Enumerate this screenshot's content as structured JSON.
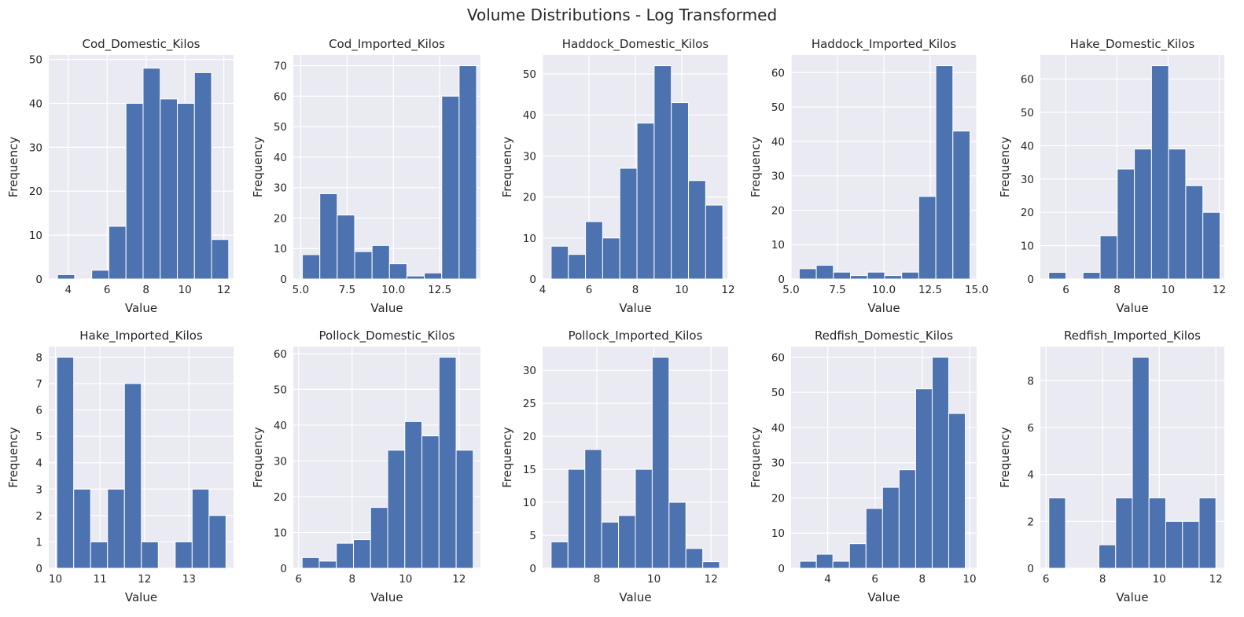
{
  "figure": {
    "suptitle": "Volume Distributions - Log Transformed"
  },
  "chart_data": [
    {
      "type": "bar",
      "title": "Cod_Domestic_Kilos",
      "xlabel": "Value",
      "ylabel": "Frequency",
      "xlim": [
        3.0,
        12.5
      ],
      "ylim": [
        0,
        51
      ],
      "xticks": [
        4,
        6,
        8,
        10,
        12
      ],
      "yticks": [
        0,
        10,
        20,
        30,
        40,
        50
      ],
      "bin_edges": [
        3.45,
        4.33,
        5.21,
        6.09,
        6.97,
        7.85,
        8.73,
        9.61,
        10.49,
        11.37,
        12.25
      ],
      "counts": [
        1,
        0,
        2,
        12,
        40,
        48,
        41,
        40,
        47,
        9
      ]
    },
    {
      "type": "bar",
      "title": "Cod_Imported_Kilos",
      "xlabel": "Value",
      "ylabel": "Frequency",
      "xlim": [
        4.6,
        14.7
      ],
      "ylim": [
        0,
        73.5
      ],
      "xticks": [
        5.0,
        7.5,
        10.0,
        12.5
      ],
      "xtick_labels": [
        "5.0",
        "7.5",
        "10.0",
        "12.5"
      ],
      "yticks": [
        0,
        10,
        20,
        30,
        40,
        50,
        60,
        70
      ],
      "bin_edges": [
        5.09,
        6.03,
        6.97,
        7.91,
        8.85,
        9.79,
        10.73,
        11.67,
        12.61,
        13.55,
        14.49
      ],
      "counts": [
        8,
        28,
        21,
        9,
        11,
        5,
        1,
        2,
        60,
        70
      ]
    },
    {
      "type": "bar",
      "title": "Haddock_Domestic_Kilos",
      "xlabel": "Value",
      "ylabel": "Frequency",
      "xlim": [
        4.0,
        12.0
      ],
      "ylim": [
        0,
        54.6
      ],
      "xticks": [
        4,
        6,
        8,
        10,
        12
      ],
      "yticks": [
        0,
        10,
        20,
        30,
        40,
        50
      ],
      "bin_edges": [
        4.37,
        5.11,
        5.85,
        6.59,
        7.33,
        8.07,
        8.81,
        9.55,
        10.29,
        11.03,
        11.77
      ],
      "counts": [
        8,
        6,
        14,
        10,
        27,
        38,
        52,
        43,
        24,
        18
      ]
    },
    {
      "type": "bar",
      "title": "Haddock_Imported_Kilos",
      "xlabel": "Value",
      "ylabel": "Frequency",
      "xlim": [
        5.0,
        15.0
      ],
      "ylim": [
        0,
        65.1
      ],
      "xticks": [
        5.0,
        7.5,
        10.0,
        12.5,
        15.0
      ],
      "xtick_labels": [
        "5.0",
        "7.5",
        "10.0",
        "12.5",
        "15.0"
      ],
      "yticks": [
        0,
        10,
        20,
        30,
        40,
        50,
        60
      ],
      "bin_edges": [
        5.44,
        6.36,
        7.28,
        8.2,
        9.12,
        10.04,
        10.96,
        11.88,
        12.8,
        13.72,
        14.64
      ],
      "counts": [
        3,
        4,
        2,
        1,
        2,
        1,
        2,
        24,
        62,
        43
      ]
    },
    {
      "type": "bar",
      "title": "Hake_Domestic_Kilos",
      "xlabel": "Value",
      "ylabel": "Frequency",
      "xlim": [
        5.0,
        12.2
      ],
      "ylim": [
        0,
        67.2
      ],
      "xticks": [
        6,
        8,
        10,
        12
      ],
      "yticks": [
        0,
        10,
        20,
        30,
        40,
        50,
        60
      ],
      "bin_edges": [
        5.33,
        6.0,
        6.67,
        7.34,
        8.01,
        8.68,
        9.35,
        10.02,
        10.69,
        11.36,
        12.03
      ],
      "counts": [
        2,
        0,
        2,
        13,
        33,
        39,
        64,
        39,
        28,
        20
      ]
    },
    {
      "type": "bar",
      "title": "Hake_Imported_Kilos",
      "xlabel": "Value",
      "ylabel": "Frequency",
      "xlim": [
        9.85,
        14.0
      ],
      "ylim": [
        0,
        8.4
      ],
      "xticks": [
        10,
        11,
        12,
        13
      ],
      "yticks": [
        0,
        1,
        2,
        3,
        4,
        5,
        6,
        7,
        8
      ],
      "bin_edges": [
        10.03,
        10.41,
        10.79,
        11.17,
        11.55,
        11.93,
        12.31,
        12.69,
        13.07,
        13.45,
        13.83
      ],
      "counts": [
        8,
        3,
        1,
        3,
        7,
        1,
        0,
        1,
        3,
        2
      ]
    },
    {
      "type": "bar",
      "title": "Pollock_Domestic_Kilos",
      "xlabel": "Value",
      "ylabel": "Frequency",
      "xlim": [
        5.8,
        12.8
      ],
      "ylim": [
        0,
        61.95
      ],
      "xticks": [
        6,
        8,
        10,
        12
      ],
      "yticks": [
        0,
        10,
        20,
        30,
        40,
        50,
        60
      ],
      "bin_edges": [
        6.13,
        6.77,
        7.41,
        8.05,
        8.69,
        9.33,
        9.97,
        10.61,
        11.25,
        11.89,
        12.53
      ],
      "counts": [
        3,
        2,
        7,
        8,
        17,
        33,
        41,
        37,
        59,
        33
      ]
    },
    {
      "type": "bar",
      "title": "Pollock_Imported_Kilos",
      "xlabel": "Value",
      "ylabel": "Frequency",
      "xlim": [
        6.1,
        12.6
      ],
      "ylim": [
        0,
        33.6
      ],
      "xticks": [
        8,
        10,
        12
      ],
      "yticks": [
        0,
        5,
        10,
        15,
        20,
        25,
        30
      ],
      "bin_edges": [
        6.4,
        6.99,
        7.58,
        8.17,
        8.76,
        9.35,
        9.94,
        10.53,
        11.12,
        11.71,
        12.3
      ],
      "counts": [
        4,
        15,
        18,
        7,
        8,
        15,
        32,
        10,
        3,
        1
      ]
    },
    {
      "type": "bar",
      "title": "Redfish_Domestic_Kilos",
      "xlabel": "Value",
      "ylabel": "Frequency",
      "xlim": [
        2.45,
        10.3
      ],
      "ylim": [
        0,
        63.0
      ],
      "xticks": [
        4,
        6,
        8,
        10
      ],
      "yticks": [
        0,
        10,
        20,
        30,
        40,
        50,
        60
      ],
      "bin_edges": [
        2.82,
        3.52,
        4.22,
        4.92,
        5.62,
        6.32,
        7.02,
        7.72,
        8.42,
        9.12,
        9.82
      ],
      "counts": [
        2,
        4,
        2,
        7,
        17,
        23,
        28,
        51,
        60,
        44
      ]
    },
    {
      "type": "bar",
      "title": "Redfish_Imported_Kilos",
      "xlabel": "Value",
      "ylabel": "Frequency",
      "xlim": [
        5.8,
        12.3
      ],
      "ylim": [
        0,
        9.45
      ],
      "xticks": [
        6,
        8,
        10,
        12
      ],
      "yticks": [
        0,
        2,
        4,
        6,
        8
      ],
      "bin_edges": [
        6.1,
        6.69,
        7.28,
        7.87,
        8.46,
        9.05,
        9.64,
        10.23,
        10.82,
        11.41,
        12.0
      ],
      "counts": [
        3,
        0,
        0,
        1,
        3,
        9,
        3,
        2,
        2,
        3
      ]
    }
  ]
}
